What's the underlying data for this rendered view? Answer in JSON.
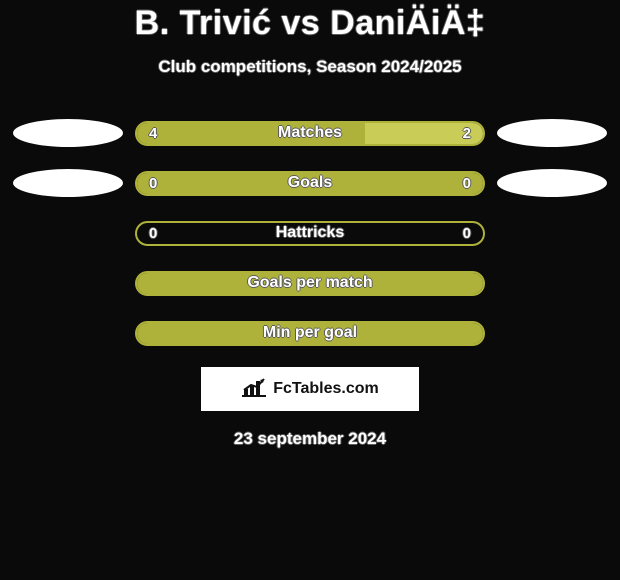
{
  "colors": {
    "background": "#0a0a0a",
    "text": "#ffffff",
    "ellipse": "#ffffff",
    "label_shadow": "#5a5a5a"
  },
  "header": {
    "title": "B. Trivić vs DaniÄiÄ‡",
    "subtitle": "Club competitions, Season 2024/2025"
  },
  "legend": {
    "left_color": "#aeb23a",
    "right_color": "#c9cd58"
  },
  "rows": [
    {
      "label": "Matches",
      "left_value": "4",
      "right_value": "2",
      "left_pct": 66,
      "right_pct": 34,
      "left_color": "#aeb23a",
      "right_color": "#c9cd58",
      "show_ellipses": true
    },
    {
      "label": "Goals",
      "left_value": "0",
      "right_value": "0",
      "left_pct": 100,
      "right_pct": 0,
      "left_color": "#aeb23a",
      "right_color": "#c9cd58",
      "show_ellipses": true
    },
    {
      "label": "Hattricks",
      "left_value": "0",
      "right_value": "0",
      "left_pct": 0,
      "right_pct": 0,
      "left_color": "#aeb23a",
      "right_color": "#c9cd58",
      "show_ellipses": false
    },
    {
      "label": "Goals per match",
      "left_value": "",
      "right_value": "",
      "left_pct": 100,
      "right_pct": 0,
      "left_color": "#aeb23a",
      "right_color": "#c9cd58",
      "show_ellipses": false
    },
    {
      "label": "Min per goal",
      "left_value": "",
      "right_value": "",
      "left_pct": 100,
      "right_pct": 0,
      "left_color": "#aeb23a",
      "right_color": "#c9cd58",
      "show_ellipses": false
    }
  ],
  "footer": {
    "brand": "FcTables.com",
    "date": "23 september 2024"
  }
}
